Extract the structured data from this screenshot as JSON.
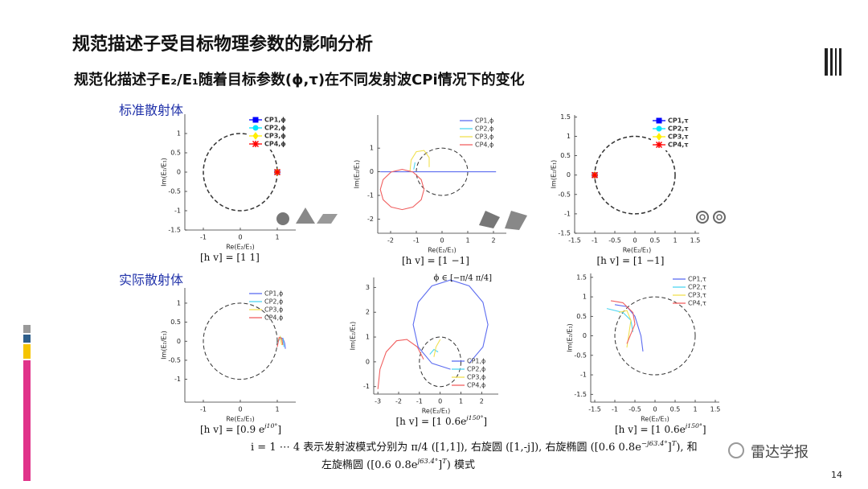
{
  "title": "规范描述子受目标物理参数的影响分析",
  "subtitle": "规范化描述子E₂/E₁随着目标参数(ϕ,τ)在不同发射波CPi情况下的变化",
  "sections": [
    "标准散射体",
    "实际散射体"
  ],
  "footnote": [
    [
      {
        "text": "i = 1 ⋯ 4 表示发射波模式分别为 π/4 ([1,1]), 右旋圆 ([1,-j]), 右旋椭圆 ([0.6   0.8e"
      },
      {
        "text": "−j63.4°",
        "sup": true
      },
      {
        "text": "]"
      },
      {
        "text": "T",
        "sup": true
      },
      {
        "text": "), 和"
      }
    ],
    [
      {
        "text": "左旋椭圆 ([0.6   0.8e"
      },
      {
        "text": "j63.4°",
        "sup": true
      },
      {
        "text": "]"
      },
      {
        "text": "T",
        "sup": true
      },
      {
        "text": ") 模式"
      }
    ]
  ],
  "watermark": "雷达学报",
  "page_number": "14",
  "chart_data": [
    {
      "type": "line",
      "xlabel": "Re(E₂/E₁)",
      "ylabel": "Im(E₂/E₁)",
      "xlim": [
        -1.5,
        1.5
      ],
      "ylim": [
        -1.5,
        1.5
      ],
      "xticks": [
        -1,
        0,
        1
      ],
      "yticks": [
        -1.5,
        -1,
        -0.5,
        0,
        0.5,
        1
      ],
      "legend": "upper right",
      "circle": {
        "cx": 0,
        "cy": 0,
        "r": 1
      },
      "caption": [
        {
          "text": "[h   v] = [1    1]"
        }
      ],
      "series": [
        {
          "name": "CP1,ϕ",
          "color": "#0000ff",
          "marker": "square",
          "x": [
            1
          ],
          "y": [
            0
          ]
        },
        {
          "name": "CP2,ϕ",
          "color": "#00e5ff",
          "marker": "circle",
          "x": [
            1
          ],
          "y": [
            0
          ]
        },
        {
          "name": "CP3,ϕ",
          "color": "#ffee00",
          "marker": "diamond",
          "x": [
            1
          ],
          "y": [
            0
          ]
        },
        {
          "name": "CP4,ϕ",
          "color": "#ff0000",
          "marker": "star",
          "x": [
            1
          ],
          "y": [
            0
          ]
        }
      ]
    },
    {
      "type": "line",
      "xlabel": "Re(E₂/E₁)",
      "ylabel": "Im(E₂/E₁)",
      "xlim": [
        -2.5,
        2.5
      ],
      "ylim": [
        -2.6,
        2.4
      ],
      "xticks": [
        -2,
        -1,
        0,
        1,
        2
      ],
      "yticks": [
        -2,
        -1,
        0,
        1
      ],
      "legend": "upper right",
      "circle": {
        "cx": 0,
        "cy": 0,
        "r": 1
      },
      "caption": [
        {
          "text": "[h   v] = [1    −1]"
        }
      ],
      "series": [
        {
          "name": "CP1,ϕ",
          "color": "#5c6cf0",
          "x": [
            -2.4,
            2.1
          ],
          "y": [
            0,
            0
          ]
        },
        {
          "name": "CP2,ϕ",
          "color": "#4fd6f0",
          "x": [
            -1.1,
            -1.05
          ],
          "y": [
            0.1,
            0.4
          ]
        },
        {
          "name": "CP3,ϕ",
          "color": "#f0e050",
          "x": [
            -1.25,
            -1.2,
            -1.0,
            -0.7,
            -0.5,
            -0.5
          ],
          "y": [
            0,
            0.5,
            0.85,
            0.9,
            0.6,
            0.2
          ]
        },
        {
          "name": "CP4,ϕ",
          "color": "#f06060",
          "x": [
            -0.7,
            -0.81,
            -1.13,
            -1.55,
            -1.98,
            -2.29,
            -2.4,
            -2.29,
            -1.98,
            -1.55,
            -1.13,
            -0.81,
            -0.7
          ],
          "y": [
            -0.75,
            -0.33,
            -0.01,
            0.1,
            -0.01,
            -0.33,
            -0.75,
            -1.18,
            -1.49,
            -1.6,
            -1.49,
            -1.18,
            -0.75
          ]
        }
      ]
    },
    {
      "type": "line",
      "xlabel": "Re(E₂/E₁)",
      "ylabel": "Im(E₂/E₁)",
      "xlim": [
        -1.5,
        1.6
      ],
      "ylim": [
        -1.5,
        1.55
      ],
      "xticks": [
        -1.5,
        -1,
        -0.5,
        0,
        0.5,
        1,
        1.5
      ],
      "yticks": [
        -1.5,
        -1,
        -0.5,
        0,
        0.5,
        1,
        1.5
      ],
      "legend": "upper right",
      "circle": {
        "cx": 0,
        "cy": 0,
        "r": 1
      },
      "caption": [
        {
          "text": "[h   v] = [1    −1]"
        }
      ],
      "series": [
        {
          "name": "CP1,τ",
          "color": "#0000ff",
          "marker": "square",
          "x": [
            -1
          ],
          "y": [
            0
          ]
        },
        {
          "name": "CP2,τ",
          "color": "#00e5ff",
          "marker": "circle",
          "x": [
            -1
          ],
          "y": [
            0
          ]
        },
        {
          "name": "CP3,τ",
          "color": "#ffee00",
          "marker": "diamond",
          "x": [
            -1
          ],
          "y": [
            0
          ]
        },
        {
          "name": "CP4,τ",
          "color": "#ff0000",
          "marker": "star",
          "x": [
            -1
          ],
          "y": [
            0
          ]
        }
      ]
    },
    {
      "type": "line",
      "xlabel": "Re(E₂/E₁)",
      "ylabel": "Im(E₂/E₁)",
      "xlim": [
        -1.5,
        1.5
      ],
      "ylim": [
        -1.6,
        1.4
      ],
      "xticks": [
        -1,
        0,
        1
      ],
      "yticks": [
        -1,
        -0.5,
        0,
        0.5,
        1
      ],
      "legend": "upper right",
      "circle": {
        "cx": 0,
        "cy": 0,
        "r": 1
      },
      "caption": [
        {
          "text": "[h   v] = [0.9    e"
        },
        {
          "text": "j10°",
          "sup": true
        },
        {
          "text": "]"
        }
      ],
      "series": [
        {
          "name": "CP1,ϕ",
          "color": "#5c6cf0",
          "x": [
            1.05,
            1.15,
            1.2,
            1.22
          ],
          "y": [
            0.05,
            0.08,
            -0.05,
            -0.2
          ]
        },
        {
          "name": "CP2,ϕ",
          "color": "#4fd6f0",
          "x": [
            1.0,
            1.1,
            1.15,
            1.18
          ],
          "y": [
            -0.05,
            0.1,
            0.05,
            -0.15
          ]
        },
        {
          "name": "CP3,ϕ",
          "color": "#f0e050",
          "x": [
            1.02,
            1.08,
            1.12
          ],
          "y": [
            0.0,
            0.12,
            -0.1
          ]
        },
        {
          "name": "CP4,ϕ",
          "color": "#f06060",
          "x": [
            1.0,
            1.05,
            1.12,
            1.15
          ],
          "y": [
            -0.15,
            0.1,
            0.08,
            -0.1
          ]
        }
      ]
    },
    {
      "type": "line",
      "xlabel": "Re(E₂/E₁)",
      "ylabel": "Im(E₂/E₁)",
      "xlim": [
        -3.2,
        2.8
      ],
      "ylim": [
        -1.3,
        3.4
      ],
      "xticks": [
        -3,
        -2,
        -1,
        0,
        1,
        2
      ],
      "yticks": [
        -1,
        0,
        1,
        2,
        3
      ],
      "legend": "lower right",
      "annotation": "ϕ ∈ [−π/4   π/4]",
      "circle": {
        "cx": 0,
        "cy": 0,
        "r": 1
      },
      "caption": [
        {
          "text": "[h   v] = [1    0.6e"
        },
        {
          "text": "j150°",
          "sup": true
        },
        {
          "text": "]"
        }
      ],
      "series": [
        {
          "name": "CP1,ϕ",
          "color": "#5c6cf0",
          "x": [
            1.4,
            2.06,
            2.3,
            2.06,
            1.4,
            0.5,
            -0.4,
            -1.06,
            -1.3,
            -1.06,
            -0.4,
            0.5
          ],
          "y": [
            -0.06,
            0.6,
            1.5,
            2.4,
            3.06,
            3.3,
            3.06,
            2.4,
            1.5,
            0.6,
            -0.06,
            -0.3
          ]
        },
        {
          "name": "CP2,ϕ",
          "color": "#4fd6f0",
          "x": [
            -0.5,
            -0.3,
            -0.1
          ],
          "y": [
            0.3,
            0.5,
            0.4
          ]
        },
        {
          "name": "CP3,ϕ",
          "color": "#f0e050",
          "x": [
            -0.3,
            -0.2,
            0.0
          ],
          "y": [
            0.2,
            0.6,
            0.9
          ]
        },
        {
          "name": "CP4,ϕ",
          "color": "#f06060",
          "x": [
            -3.0,
            -2.9,
            -2.6,
            -2.1,
            -1.6,
            -1.1,
            -0.8
          ],
          "y": [
            -1.1,
            -0.3,
            0.4,
            0.85,
            0.9,
            0.6,
            0.1
          ]
        }
      ]
    },
    {
      "type": "line",
      "xlabel": "Re(E₂/E₁)",
      "ylabel": "Im(E₂/E₁)",
      "xlim": [
        -1.6,
        1.6
      ],
      "ylim": [
        -1.7,
        1.6
      ],
      "xticks": [
        -1.5,
        -1,
        -0.5,
        0,
        0.5,
        1,
        1.5
      ],
      "yticks": [
        -1.5,
        -1,
        -0.5,
        0,
        0.5,
        1,
        1.5
      ],
      "legend": "upper right",
      "circle": {
        "cx": 0,
        "cy": 0,
        "r": 1
      },
      "caption": [
        {
          "text": "[h   v] = [1    0.6e"
        },
        {
          "text": "j150°",
          "sup": true
        },
        {
          "text": "]"
        }
      ],
      "series": [
        {
          "name": "CP1,τ",
          "color": "#5c6cf0",
          "x": [
            -1.0,
            -0.7,
            -0.5,
            -0.35,
            -0.3
          ],
          "y": [
            0.8,
            0.75,
            0.5,
            0.0,
            -0.4
          ]
        },
        {
          "name": "CP2,τ",
          "color": "#4fd6f0",
          "x": [
            -1.2,
            -0.8,
            -0.6,
            -0.55
          ],
          "y": [
            0.7,
            0.6,
            0.4,
            0.1
          ]
        },
        {
          "name": "CP3,τ",
          "color": "#f0e050",
          "x": [
            -0.9,
            -0.7,
            -0.6,
            -0.7
          ],
          "y": [
            0.6,
            0.65,
            0.4,
            -0.3
          ]
        },
        {
          "name": "CP4,τ",
          "color": "#f06060",
          "x": [
            -1.1,
            -0.8,
            -0.55,
            -0.5,
            -0.7
          ],
          "y": [
            0.9,
            0.85,
            0.6,
            0.3,
            -0.2
          ]
        }
      ]
    }
  ]
}
